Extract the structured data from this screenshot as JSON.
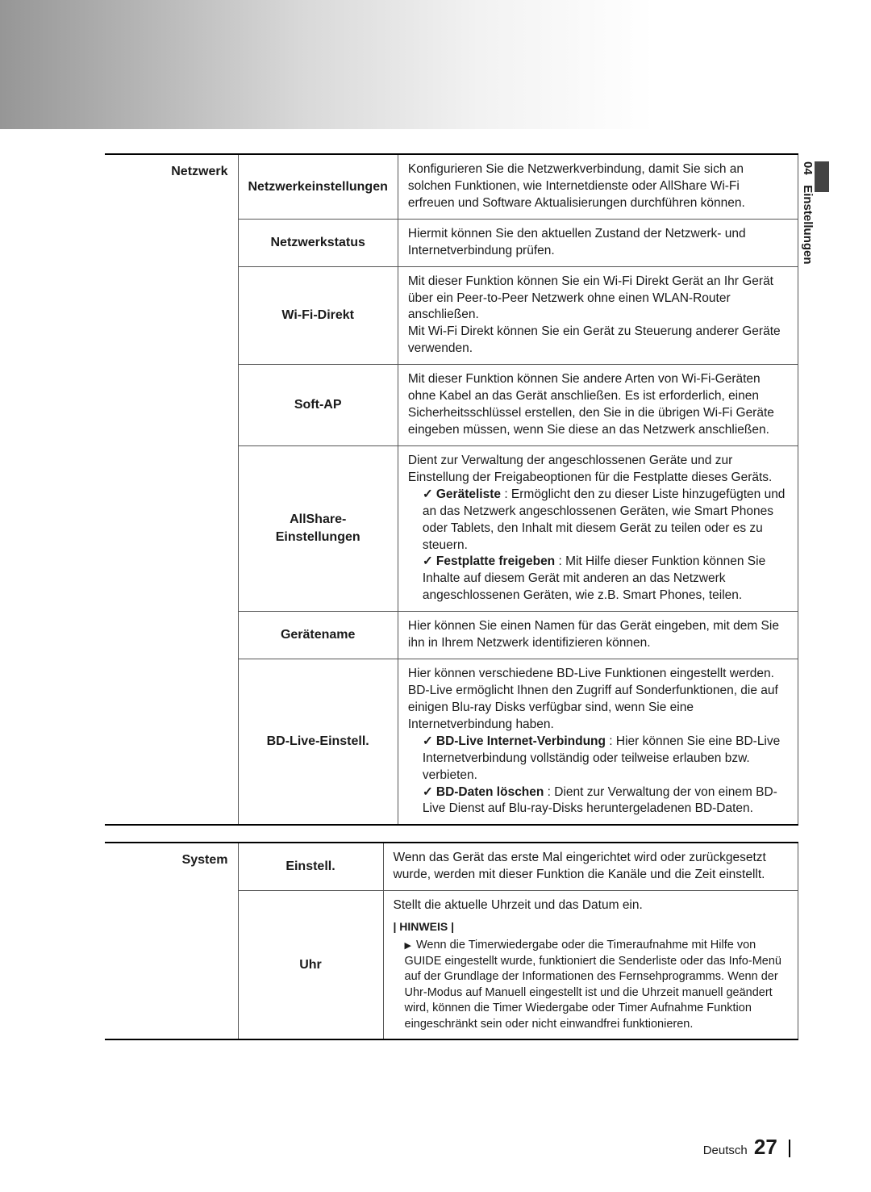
{
  "sideTab": {
    "num": "04",
    "label": "Einstellungen"
  },
  "netzwerk": {
    "category": "Netzwerk",
    "rows": [
      {
        "label": "Netzwerkeinstellungen",
        "desc": "Konfigurieren Sie die Netzwerkverbindung, damit Sie sich an solchen Funktionen, wie Internetdienste oder AllShare Wi-Fi erfreuen und Software Aktualisierungen durchführen können."
      },
      {
        "label": "Netzwerkstatus",
        "desc": "Hiermit können Sie den aktuellen Zustand der Netzwerk- und Internetverbindung prüfen."
      },
      {
        "label": "Wi-Fi-Direkt",
        "desc": "Mit dieser Funktion können Sie ein Wi-Fi Direkt Gerät an Ihr Gerät über ein Peer-to-Peer Netzwerk ohne einen WLAN-Router anschließen.\nMit Wi-Fi Direkt können Sie ein Gerät zu Steuerung anderer Geräte verwenden."
      },
      {
        "label": "Soft-AP",
        "desc": "Mit dieser Funktion können Sie andere Arten von Wi-Fi-Geräten ohne Kabel an das Gerät anschließen. Es ist erforderlich, einen Sicherheitsschlüssel erstellen, den Sie in die übrigen Wi-Fi Geräte eingeben müssen, wenn Sie diese an das Netzwerk anschließen."
      },
      {
        "label": "AllShare-Einstellungen",
        "descIntro": "Dient zur Verwaltung der angeschlossenen Geräte und zur Einstellung der Freigabeoptionen für die Festplatte dieses Geräts.",
        "b1t": "Geräteliste",
        "b1d": " : Ermöglicht den zu dieser Liste hinzugefügten und an das Netzwerk angeschlossenen Geräten, wie Smart Phones oder Tablets, den Inhalt mit diesem Gerät zu teilen oder es zu steuern.",
        "b2t": "Festplatte freigeben",
        "b2d": " : Mit Hilfe dieser Funktion können Sie Inhalte auf diesem Gerät mit anderen an das Netzwerk angeschlossenen Geräten, wie z.B. Smart Phones, teilen."
      },
      {
        "label": "Gerätename",
        "desc": "Hier können Sie einen Namen für das Gerät eingeben, mit dem Sie ihn in Ihrem Netzwerk identifizieren können."
      },
      {
        "label": "BD-Live-Einstell.",
        "descIntro": "Hier können verschiedene BD-Live Funktionen eingestellt werden. BD-Live ermöglicht Ihnen den Zugriff auf Sonderfunktionen, die auf einigen Blu-ray Disks verfügbar sind, wenn Sie eine Internetverbindung haben.",
        "b1t": "BD-Live Internet-Verbindung",
        "b1d": " : Hier können Sie eine BD-Live Internetverbindung vollständig oder teilweise erlauben bzw. verbieten.",
        "b2t": "BD-Daten löschen",
        "b2d": " : Dient zur Verwaltung der von einem BD-Live Dienst auf Blu-ray-Disks heruntergeladenen BD-Daten."
      }
    ]
  },
  "system": {
    "category": "System",
    "rows": [
      {
        "label": "Einstell.",
        "desc": "Wenn das Gerät das erste Mal eingerichtet wird oder zurückgesetzt wurde, werden mit dieser Funktion die Kanäle und die Zeit einstellt."
      },
      {
        "label": "Uhr",
        "descIntro": "Stellt die aktuelle Uhrzeit und das Datum ein.",
        "noteLabel": "| HINWEIS |",
        "noteBody": "Wenn die Timerwiedergabe oder die Timeraufnahme mit Hilfe von GUIDE eingestellt wurde, funktioniert die Senderliste oder das Info-Menü auf der Grundlage der Informationen des Fernsehprogramms. Wenn der Uhr-Modus auf Manuell eingestellt ist und die Uhrzeit manuell geändert wird, können die Timer Wiedergabe oder Timer Aufnahme Funktion eingeschränkt sein oder nicht einwandfrei funktionieren."
      }
    ]
  },
  "footer": {
    "lang": "Deutsch",
    "page": "27"
  }
}
